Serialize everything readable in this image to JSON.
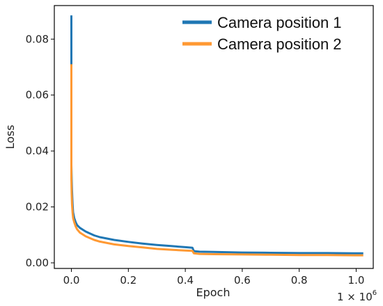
{
  "chart_data": {
    "type": "line",
    "title": "",
    "xlabel": "Epoch",
    "ylabel": "Loss",
    "x_multiplier_label": "1 × 10",
    "x_multiplier_exponent": "6",
    "xlim": [
      -0.06,
      1.06
    ],
    "ylim": [
      -0.002,
      0.092
    ],
    "xticks": [
      0.0,
      0.2,
      0.4,
      0.6,
      0.8,
      1.0
    ],
    "xtick_labels": [
      "0.0",
      "0.2",
      "0.4",
      "0.6",
      "0.8",
      "1.0"
    ],
    "yticks": [
      0.0,
      0.02,
      0.04,
      0.06,
      0.08
    ],
    "ytick_labels": [
      "0.00",
      "0.02",
      "0.04",
      "0.06",
      "0.08"
    ],
    "grid": false,
    "legend_position": "top-right",
    "series": [
      {
        "name": "Camera position 1",
        "color": "#1f77b4",
        "x": [
          0.0,
          0.0,
          0.001,
          0.002,
          0.004,
          0.006,
          0.01,
          0.015,
          0.02,
          0.03,
          0.05,
          0.08,
          0.1,
          0.15,
          0.2,
          0.25,
          0.3,
          0.35,
          0.4,
          0.425,
          0.43,
          0.45,
          0.5,
          0.6,
          0.7,
          0.8,
          0.9,
          1.0,
          1.025
        ],
        "y": [
          0.0885,
          0.035,
          0.03,
          0.026,
          0.021,
          0.018,
          0.016,
          0.0145,
          0.0135,
          0.0125,
          0.0112,
          0.0098,
          0.0092,
          0.0082,
          0.0075,
          0.0069,
          0.0064,
          0.006,
          0.0056,
          0.0054,
          0.0042,
          0.004,
          0.0039,
          0.0037,
          0.0036,
          0.0035,
          0.0035,
          0.0034,
          0.0034
        ]
      },
      {
        "name": "Camera position 2",
        "color": "#ff9933",
        "x": [
          0.0,
          0.0,
          0.001,
          0.002,
          0.004,
          0.006,
          0.01,
          0.015,
          0.02,
          0.03,
          0.05,
          0.08,
          0.1,
          0.15,
          0.2,
          0.25,
          0.3,
          0.35,
          0.4,
          0.425,
          0.43,
          0.45,
          0.5,
          0.6,
          0.7,
          0.8,
          0.9,
          1.0,
          1.025
        ],
        "y": [
          0.071,
          0.03,
          0.025,
          0.021,
          0.018,
          0.016,
          0.0145,
          0.013,
          0.012,
          0.0108,
          0.0095,
          0.0082,
          0.0076,
          0.0066,
          0.006,
          0.0055,
          0.005,
          0.0047,
          0.0044,
          0.0043,
          0.0034,
          0.0032,
          0.0031,
          0.003,
          0.0029,
          0.0028,
          0.0028,
          0.0027,
          0.0027
        ]
      }
    ]
  }
}
